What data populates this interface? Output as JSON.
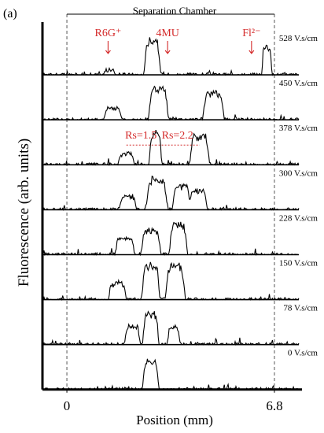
{
  "chart_data": {
    "type": "line",
    "panel_label": "(a)",
    "header_label": "Separation Chamber",
    "ylabel": "Fluorescence (arb. units)",
    "xlabel": "Position (mm)",
    "xlim": [
      -0.8,
      7.6
    ],
    "xticks": [
      {
        "value": 0,
        "label": "0"
      },
      {
        "value": 6.8,
        "label": "6.8"
      }
    ],
    "chamber_range": [
      0,
      6.8
    ],
    "ylim_per_panel": [
      0,
      1
    ],
    "colors": {
      "trace": "#000000",
      "annotation": "#d42a2a",
      "guide": "#555555"
    },
    "series": [
      {
        "name": "528 V.s/cm",
        "peaks": [
          {
            "center": 1.4,
            "width": 0.35,
            "height": 0.12
          },
          {
            "center": 2.8,
            "width": 0.45,
            "height": 0.9
          },
          {
            "center": 6.55,
            "width": 0.28,
            "height": 0.75
          }
        ]
      },
      {
        "name": "450 V.s/cm",
        "peaks": [
          {
            "center": 1.5,
            "width": 0.5,
            "height": 0.3
          },
          {
            "center": 3.0,
            "width": 0.55,
            "height": 0.82
          },
          {
            "center": 4.8,
            "width": 0.6,
            "height": 0.68
          }
        ]
      },
      {
        "name": "378 V.s/cm",
        "peaks": [
          {
            "center": 1.95,
            "width": 0.45,
            "height": 0.3
          },
          {
            "center": 2.9,
            "width": 0.35,
            "height": 0.8
          },
          {
            "center": 4.35,
            "width": 0.55,
            "height": 0.75
          }
        ]
      },
      {
        "name": "300 V.s/cm",
        "peaks": [
          {
            "center": 2.0,
            "width": 0.5,
            "height": 0.35
          },
          {
            "center": 2.95,
            "width": 0.6,
            "height": 0.78
          },
          {
            "center": 3.75,
            "width": 0.5,
            "height": 0.6
          },
          {
            "center": 4.3,
            "width": 0.5,
            "height": 0.5
          }
        ]
      },
      {
        "name": "228 V.s/cm",
        "peaks": [
          {
            "center": 1.9,
            "width": 0.55,
            "height": 0.45
          },
          {
            "center": 2.75,
            "width": 0.55,
            "height": 0.62
          },
          {
            "center": 3.65,
            "width": 0.5,
            "height": 0.78
          }
        ]
      },
      {
        "name": "150 V.s/cm",
        "peaks": [
          {
            "center": 1.65,
            "width": 0.5,
            "height": 0.42
          },
          {
            "center": 2.75,
            "width": 0.5,
            "height": 0.88
          },
          {
            "center": 3.55,
            "width": 0.55,
            "height": 0.88
          }
        ]
      },
      {
        "name": "78 V.s/cm",
        "peaks": [
          {
            "center": 2.15,
            "width": 0.45,
            "height": 0.45
          },
          {
            "center": 2.75,
            "width": 0.45,
            "height": 0.8
          },
          {
            "center": 3.5,
            "width": 0.35,
            "height": 0.45
          }
        ]
      },
      {
        "name": "0 V.s/cm",
        "peaks": [
          {
            "center": 2.75,
            "width": 0.45,
            "height": 0.75
          }
        ]
      }
    ],
    "annotations": [
      {
        "text": "R6G⁺",
        "panel": 0,
        "x": 1.35
      },
      {
        "text": "4MU",
        "panel": 0,
        "x": 3.3
      },
      {
        "text": "Fl²⁻",
        "panel": 0,
        "x": 6.05
      },
      {
        "text": "Rs=1.5",
        "panel": 2,
        "x": 1.95,
        "x_end": 2.9
      },
      {
        "text": "Rs=2.2",
        "panel": 2,
        "x": 2.9,
        "x_end": 4.35
      }
    ]
  }
}
